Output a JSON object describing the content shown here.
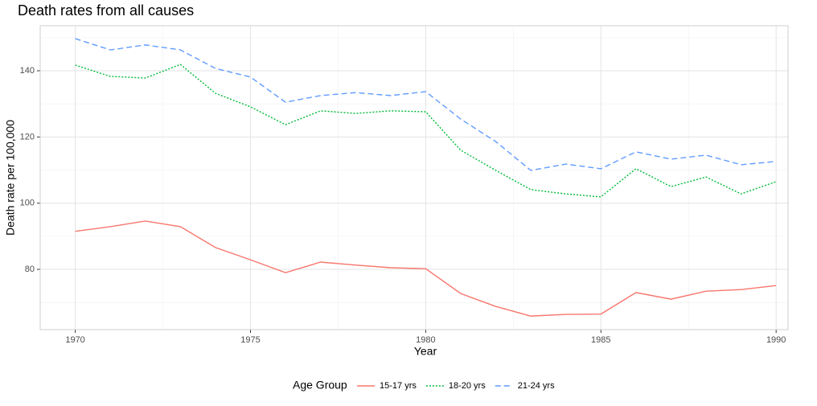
{
  "chart_data": {
    "type": "line",
    "title": "Death rates from all causes",
    "x_label": "Year",
    "y_label": "Death rate per 100,000",
    "legend_title": "Age Group",
    "legend_position": "bottom",
    "grid": true,
    "x": [
      1970,
      1971,
      1972,
      1973,
      1974,
      1975,
      1976,
      1977,
      1978,
      1979,
      1980,
      1981,
      1982,
      1983,
      1984,
      1985,
      1986,
      1987,
      1988,
      1989,
      1990
    ],
    "series": [
      {
        "name": "15-17 yrs",
        "color": "#F8766D",
        "linetype": "solid",
        "values": [
          91.5,
          92.9,
          94.6,
          92.9,
          86.6,
          82.9,
          79.0,
          82.2,
          81.3,
          80.5,
          80.2,
          72.7,
          68.8,
          65.9,
          66.4,
          66.5,
          73.0,
          71.0,
          73.4,
          73.9,
          75.1
        ]
      },
      {
        "name": "18-20 yrs",
        "color": "#00BA38",
        "linetype": "dotted",
        "values": [
          141.7,
          138.3,
          137.8,
          141.9,
          133.2,
          129.1,
          123.7,
          127.9,
          127.1,
          127.9,
          127.6,
          116.0,
          109.9,
          104.1,
          102.8,
          101.9,
          110.4,
          105.0,
          107.9,
          102.8,
          106.5
        ]
      },
      {
        "name": "21-24 yrs",
        "color": "#619CFF",
        "linetype": "dashed",
        "values": [
          149.7,
          146.3,
          147.8,
          146.3,
          140.7,
          138.1,
          130.5,
          132.5,
          133.4,
          132.5,
          133.7,
          125.4,
          118.6,
          109.9,
          111.8,
          110.4,
          115.5,
          113.3,
          114.5,
          111.6,
          112.6
        ]
      }
    ],
    "xlim": [
      1969,
      1990.34
    ],
    "ylim": [
      61.8,
      153.6
    ],
    "xticks": [
      1970,
      1975,
      1980,
      1985,
      1990
    ],
    "yticks": [
      80,
      100,
      120,
      140
    ],
    "x_minor_ticks": [
      1972.5,
      1977.5,
      1982.5,
      1987.5
    ],
    "y_minor_ticks": [
      70,
      90,
      110,
      130,
      150
    ]
  }
}
